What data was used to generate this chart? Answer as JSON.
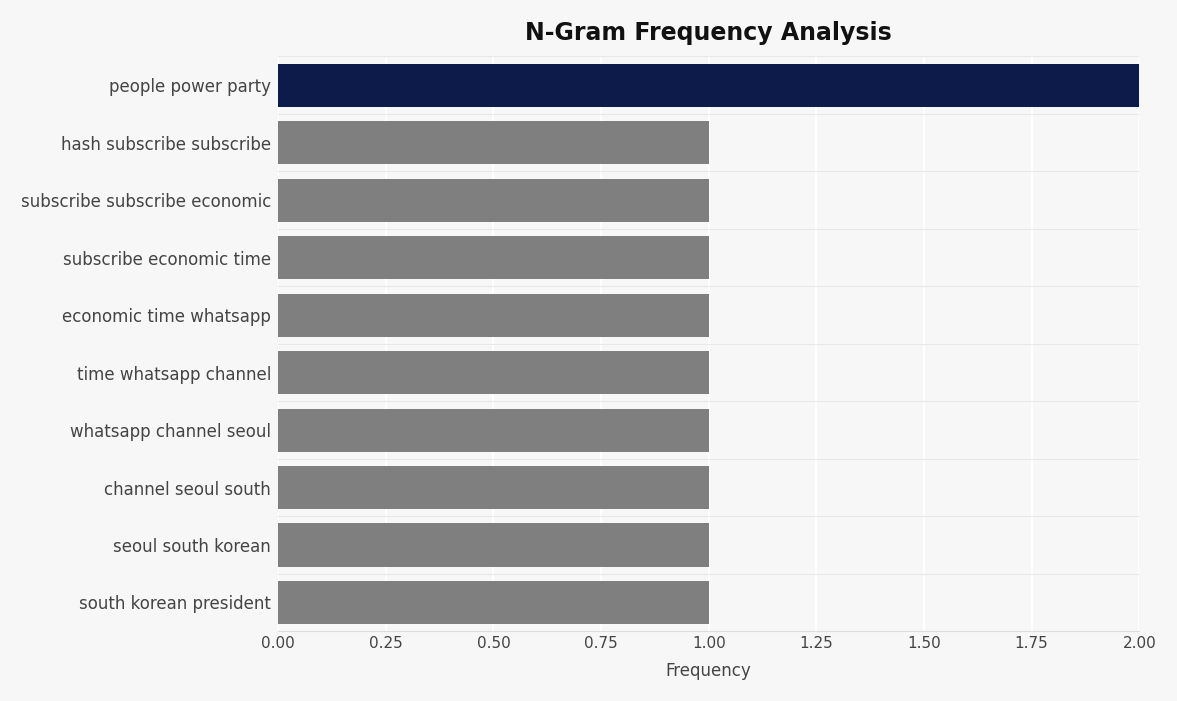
{
  "title": "N-Gram Frequency Analysis",
  "xlabel": "Frequency",
  "categories": [
    "south korean president",
    "seoul south korean",
    "channel seoul south",
    "whatsapp channel seoul",
    "time whatsapp channel",
    "economic time whatsapp",
    "subscribe economic time",
    "subscribe subscribe economic",
    "hash subscribe subscribe",
    "people power party"
  ],
  "values": [
    1,
    1,
    1,
    1,
    1,
    1,
    1,
    1,
    1,
    2
  ],
  "bar_colors": [
    "#7f7f7f",
    "#7f7f7f",
    "#7f7f7f",
    "#7f7f7f",
    "#7f7f7f",
    "#7f7f7f",
    "#7f7f7f",
    "#7f7f7f",
    "#7f7f7f",
    "#0d1b4b"
  ],
  "xlim": [
    0,
    2.0
  ],
  "xticks": [
    0.0,
    0.25,
    0.5,
    0.75,
    1.0,
    1.25,
    1.5,
    1.75,
    2.0
  ],
  "xtick_labels": [
    "0.00",
    "0.25",
    "0.50",
    "0.75",
    "1.00",
    "1.25",
    "1.50",
    "1.75",
    "2.00"
  ],
  "background_color": "#f7f7f7",
  "grid_color": "#ffffff",
  "title_fontsize": 17,
  "label_fontsize": 12,
  "tick_fontsize": 11,
  "bar_height": 0.75
}
